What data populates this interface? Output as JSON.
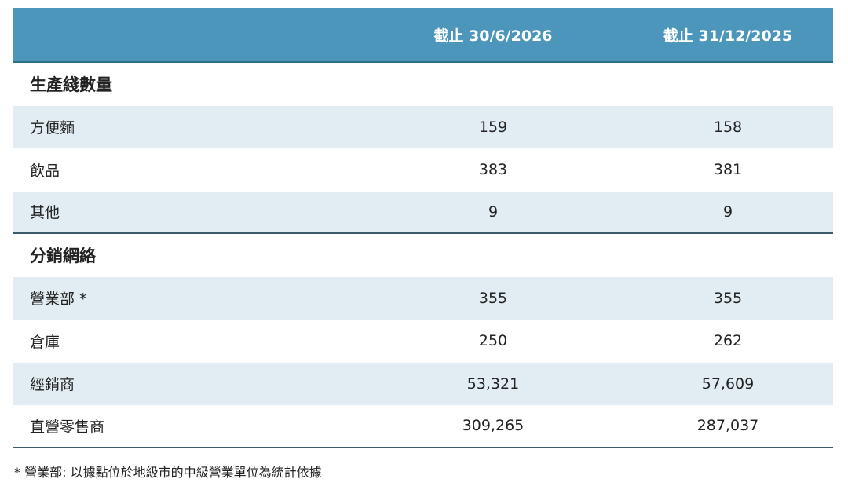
{
  "table": {
    "columns": [
      "截止 30/6/2026",
      "截止 31/12/2025"
    ],
    "sections": [
      {
        "title": "生產綫數量",
        "rows": [
          [
            "方便麵",
            "159",
            "158"
          ],
          [
            "飲品",
            "383",
            "381"
          ],
          [
            "其他",
            "9",
            "9"
          ]
        ]
      },
      {
        "title": "分銷網絡",
        "rows": [
          [
            "營業部 *",
            "355",
            "355"
          ],
          [
            "倉庫",
            "250",
            "262"
          ],
          [
            "經銷商",
            "53,321",
            "57,609"
          ],
          [
            "直營零售商",
            "309,265",
            "287,037"
          ]
        ]
      }
    ]
  },
  "footnote": "* 營業部: 以據點位於地級市的中級營業單位為統計依據"
}
